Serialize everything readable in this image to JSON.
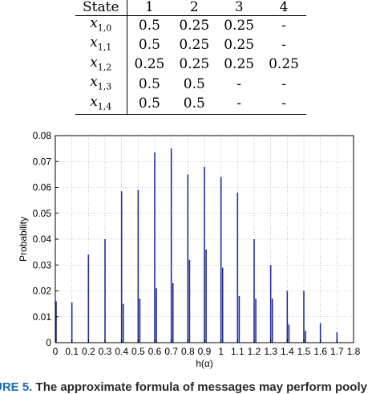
{
  "table": {
    "headers": [
      "State",
      "1",
      "2",
      "3",
      "4"
    ],
    "rows": [
      {
        "var": "x",
        "sub": "1,0",
        "cells": [
          "0.5",
          "0.25",
          "0.25",
          "-"
        ]
      },
      {
        "var": "x",
        "sub": "1,1",
        "cells": [
          "0.5",
          "0.25",
          "0.25",
          "-"
        ]
      },
      {
        "var": "x",
        "sub": "1,2",
        "cells": [
          "0.25",
          "0.25",
          "0.25",
          "0.25"
        ]
      },
      {
        "var": "x",
        "sub": "1,3",
        "cells": [
          "0.5",
          "0.5",
          "-",
          "-"
        ]
      },
      {
        "var": "x",
        "sub": "1,4",
        "cells": [
          "0.5",
          "0.5",
          "-",
          "-"
        ]
      }
    ]
  },
  "chart_data": {
    "type": "bar",
    "xlabel": "h(α)",
    "ylabel": "Probability",
    "xlim": [
      0,
      1.8
    ],
    "ylim": [
      0,
      0.08
    ],
    "xticks": [
      "0",
      "0.1",
      "0.2",
      "0.3",
      "0.4",
      "0.5",
      "0.6",
      "0.7",
      "0.8",
      "0.9",
      "1",
      "1.1",
      "1.2",
      "1.3",
      "1.4",
      "1.5",
      "1.6",
      "1.7",
      "1.8"
    ],
    "yticks": [
      "0",
      "0.01",
      "0.02",
      "0.03",
      "0.04",
      "0.05",
      "0.06",
      "0.07",
      "0.08"
    ],
    "grid": true,
    "bar_color": "#1f2f9c",
    "points": [
      {
        "x": 0.0,
        "y": 0.016
      },
      {
        "x": 0.1,
        "y": 0.0155
      },
      {
        "x": 0.2,
        "y": 0.034
      },
      {
        "x": 0.3,
        "y": 0.04
      },
      {
        "x": 0.4,
        "y": 0.0585
      },
      {
        "x": 0.41,
        "y": 0.015
      },
      {
        "x": 0.5,
        "y": 0.059
      },
      {
        "x": 0.51,
        "y": 0.017
      },
      {
        "x": 0.6,
        "y": 0.0735
      },
      {
        "x": 0.61,
        "y": 0.021
      },
      {
        "x": 0.7,
        "y": 0.075
      },
      {
        "x": 0.71,
        "y": 0.023
      },
      {
        "x": 0.8,
        "y": 0.065
      },
      {
        "x": 0.81,
        "y": 0.032
      },
      {
        "x": 0.9,
        "y": 0.068
      },
      {
        "x": 0.91,
        "y": 0.036
      },
      {
        "x": 1.0,
        "y": 0.064
      },
      {
        "x": 1.01,
        "y": 0.029
      },
      {
        "x": 1.1,
        "y": 0.058
      },
      {
        "x": 1.11,
        "y": 0.018
      },
      {
        "x": 1.2,
        "y": 0.04
      },
      {
        "x": 1.21,
        "y": 0.017
      },
      {
        "x": 1.3,
        "y": 0.03
      },
      {
        "x": 1.31,
        "y": 0.017
      },
      {
        "x": 1.4,
        "y": 0.02
      },
      {
        "x": 1.41,
        "y": 0.007
      },
      {
        "x": 1.5,
        "y": 0.02
      },
      {
        "x": 1.51,
        "y": 0.0045
      },
      {
        "x": 1.6,
        "y": 0.0075
      },
      {
        "x": 1.7,
        "y": 0.004
      }
    ]
  },
  "caption": {
    "fig_label": "URE 5.",
    "text": "The approximate formula of messages may perform pooly"
  }
}
